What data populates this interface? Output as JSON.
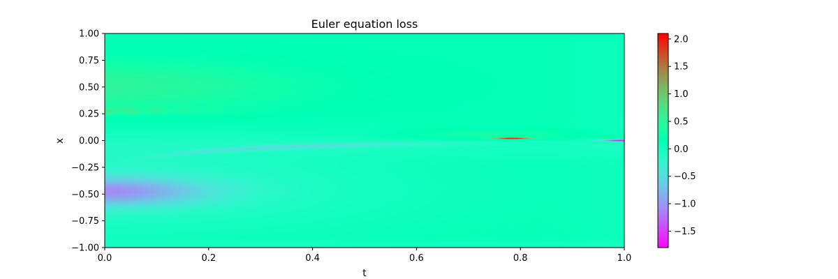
{
  "chart_data": {
    "type": "heatmap",
    "title": "Euler equation loss",
    "xlabel": "t",
    "ylabel": "x",
    "xlim": [
      0.0,
      1.0
    ],
    "ylim": [
      -1.0,
      1.0
    ],
    "xticks": [
      "0.0",
      "0.2",
      "0.4",
      "0.6",
      "0.8",
      "1.0"
    ],
    "yticks": [
      "1.00",
      "0.75",
      "0.50",
      "0.25",
      "0.00",
      "−0.25",
      "−0.50",
      "−0.75",
      "−1.00"
    ],
    "colorbar": {
      "cmap": "rainbow",
      "vmin": -1.8,
      "vmax": 2.1,
      "ticks": [
        "2.0",
        "1.5",
        "1.0",
        "0.5",
        "0.0",
        "−0.5",
        "−1.0",
        "−1.5"
      ]
    },
    "grid": false,
    "features": [
      {
        "t": 0.1,
        "x": 0.52,
        "value": 0.55
      },
      {
        "t": 0.02,
        "x": 0.28,
        "value": 1.0
      },
      {
        "t": 0.05,
        "x": -0.48,
        "value": -0.9
      },
      {
        "t": 0.3,
        "x": -0.15,
        "value": -0.45
      },
      {
        "t": 0.78,
        "x": 0.02,
        "value": 2.1
      },
      {
        "t": 0.96,
        "x": 0.0,
        "value": -1.8
      }
    ]
  }
}
